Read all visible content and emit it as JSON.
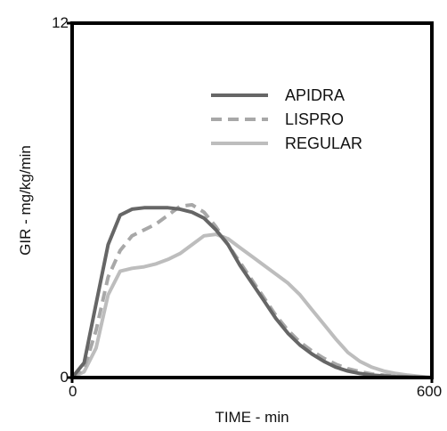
{
  "chart_data": {
    "type": "line",
    "xlabel": "TIME - min",
    "ylabel": "GIR - mg/kg/min",
    "xlim": [
      0,
      600
    ],
    "ylim": [
      0,
      12
    ],
    "xticks": [
      "0",
      "600"
    ],
    "yticks": [
      "0",
      "12"
    ],
    "grid": false,
    "legend_position": "top-right",
    "series": [
      {
        "name": "APIDRA",
        "color": "#666666",
        "dash": "solid",
        "x": [
          0,
          20,
          40,
          60,
          80,
          100,
          120,
          140,
          160,
          180,
          200,
          220,
          240,
          260,
          280,
          300,
          320,
          340,
          360,
          380,
          400,
          420,
          440,
          460,
          480,
          500,
          520,
          540,
          560,
          580,
          600
        ],
        "y": [
          0,
          0.5,
          2.5,
          4.5,
          5.5,
          5.7,
          5.75,
          5.75,
          5.75,
          5.7,
          5.6,
          5.4,
          5.0,
          4.5,
          3.8,
          3.2,
          2.6,
          2.0,
          1.5,
          1.1,
          0.8,
          0.55,
          0.35,
          0.22,
          0.14,
          0.08,
          0.05,
          0.03,
          0.02,
          0.01,
          0
        ]
      },
      {
        "name": "LISPRO",
        "color": "#a8a8a8",
        "dash": "dashed",
        "x": [
          0,
          20,
          40,
          60,
          80,
          100,
          120,
          140,
          160,
          180,
          200,
          220,
          240,
          260,
          280,
          300,
          320,
          340,
          360,
          380,
          400,
          420,
          440,
          460,
          480,
          500,
          520,
          540,
          560,
          580,
          600
        ],
        "y": [
          0,
          0.3,
          1.6,
          3.4,
          4.3,
          4.8,
          5.0,
          5.2,
          5.5,
          5.8,
          5.85,
          5.6,
          5.1,
          4.5,
          3.9,
          3.3,
          2.7,
          2.1,
          1.6,
          1.2,
          0.9,
          0.65,
          0.45,
          0.3,
          0.2,
          0.12,
          0.08,
          0.05,
          0.03,
          0.02,
          0
        ]
      },
      {
        "name": "REGULAR",
        "color": "#bdbdbd",
        "dash": "solid",
        "x": [
          0,
          20,
          40,
          60,
          80,
          100,
          120,
          140,
          160,
          180,
          200,
          220,
          240,
          260,
          280,
          300,
          320,
          340,
          360,
          380,
          400,
          420,
          440,
          460,
          480,
          500,
          520,
          540,
          560,
          580,
          600
        ],
        "y": [
          0,
          0.2,
          1.0,
          2.8,
          3.6,
          3.7,
          3.75,
          3.85,
          4.0,
          4.2,
          4.5,
          4.8,
          4.85,
          4.7,
          4.4,
          4.1,
          3.8,
          3.5,
          3.2,
          2.8,
          2.3,
          1.8,
          1.3,
          0.85,
          0.55,
          0.35,
          0.22,
          0.14,
          0.08,
          0.04,
          0
        ]
      }
    ]
  }
}
